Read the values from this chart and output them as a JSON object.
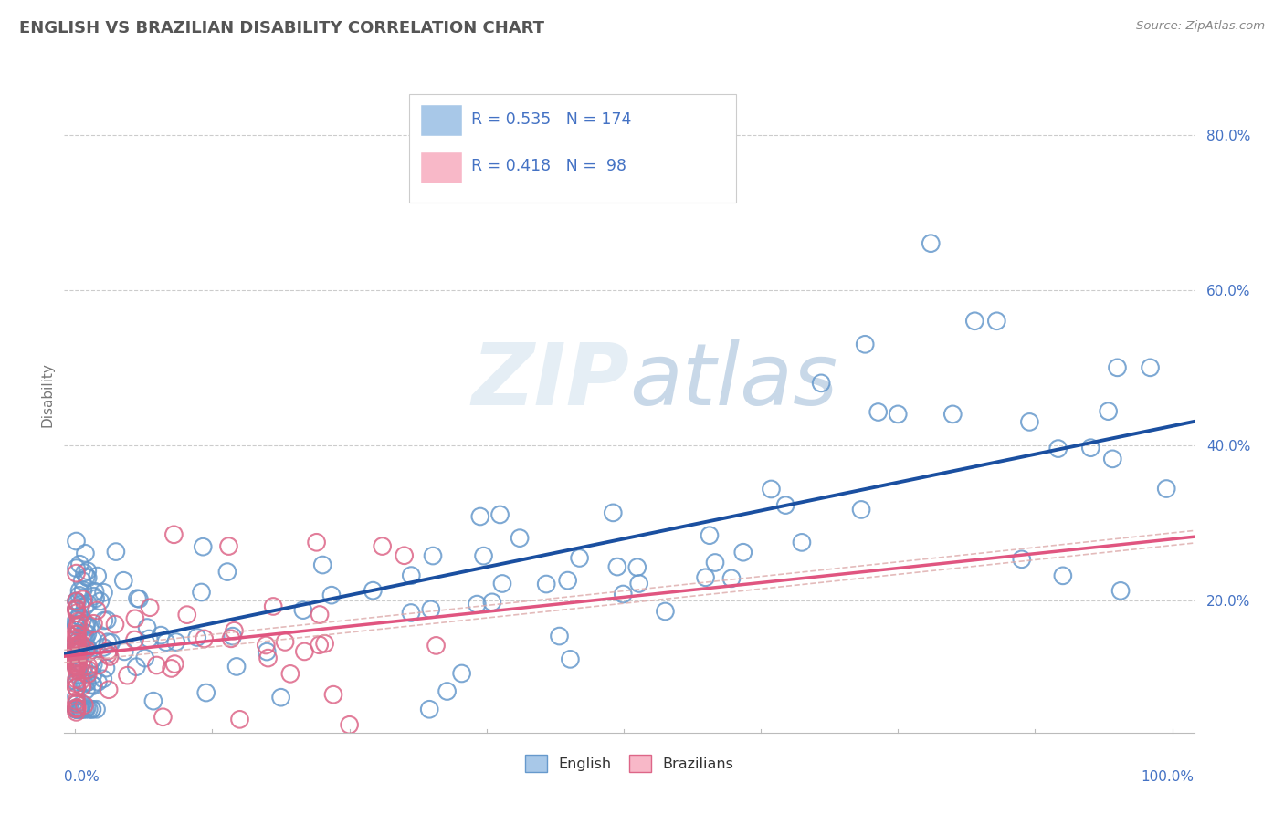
{
  "title": "ENGLISH VS BRAZILIAN DISABILITY CORRELATION CHART",
  "source": "Source: ZipAtlas.com",
  "ylabel": "Disability",
  "legend_english_R": "0.535",
  "legend_english_N": "174",
  "legend_brazilian_R": "0.418",
  "legend_brazilian_N": "98",
  "english_color": "#a8c8e8",
  "english_edge_color": "#6699cc",
  "english_line_color": "#1a4fa0",
  "brazilian_color": "#f8b8c8",
  "brazilian_edge_color": "#dd6688",
  "brazilian_line_color": "#e05580",
  "conf_line_color": "#ddaaaa",
  "background_color": "#ffffff",
  "grid_color": "#cccccc",
  "watermark_color": "#e5eef5",
  "watermark_text": "ZIPatlas",
  "axis_label_color": "#4472c4",
  "title_color": "#555555",
  "source_color": "#888888",
  "ylabel_color": "#777777"
}
